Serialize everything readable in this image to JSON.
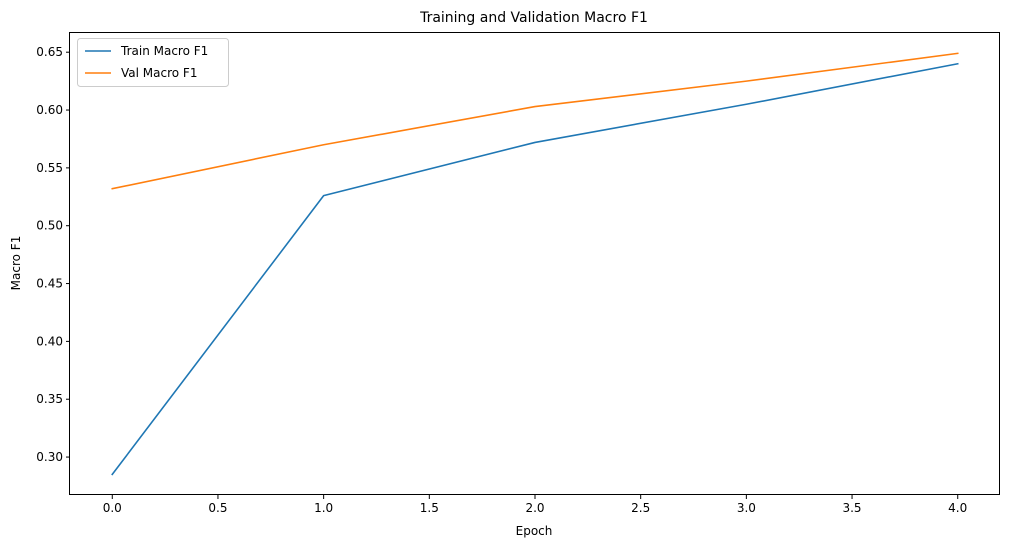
{
  "chart_data": {
    "type": "line",
    "title": "Training and Validation Macro F1",
    "xlabel": "Epoch",
    "ylabel": "Macro F1",
    "x": [
      0,
      1,
      2,
      3,
      4
    ],
    "series": [
      {
        "name": "Train Macro F1",
        "color": "#1f77b4",
        "values": [
          0.285,
          0.526,
          0.572,
          0.605,
          0.64
        ]
      },
      {
        "name": "Val Macro F1",
        "color": "#ff7f0e",
        "values": [
          0.532,
          0.57,
          0.603,
          0.625,
          0.649
        ]
      }
    ],
    "xlim": [
      -0.2,
      4.2
    ],
    "ylim": [
      0.2672,
      0.6666
    ],
    "xticks": [
      0.0,
      0.5,
      1.0,
      1.5,
      2.0,
      2.5,
      3.0,
      3.5,
      4.0
    ],
    "xtick_labels": [
      "0.0",
      "0.5",
      "1.0",
      "1.5",
      "2.0",
      "2.5",
      "3.0",
      "3.5",
      "4.0"
    ],
    "yticks": [
      0.3,
      0.35,
      0.4,
      0.45,
      0.5,
      0.55,
      0.6,
      0.65
    ],
    "ytick_labels": [
      "0.30",
      "0.35",
      "0.40",
      "0.45",
      "0.50",
      "0.55",
      "0.60",
      "0.65"
    ],
    "grid": false,
    "legend_position": "top-left"
  }
}
